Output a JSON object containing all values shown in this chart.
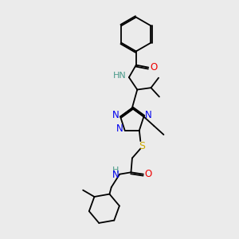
{
  "background_color": "#ebebeb",
  "atom_colors": {
    "C": "#000000",
    "H": "#4a9a8a",
    "N": "#0000ee",
    "O": "#ee0000",
    "S": "#ccaa00"
  },
  "bond_color": "#000000",
  "figsize": [
    3.0,
    3.0
  ],
  "dpi": 100
}
